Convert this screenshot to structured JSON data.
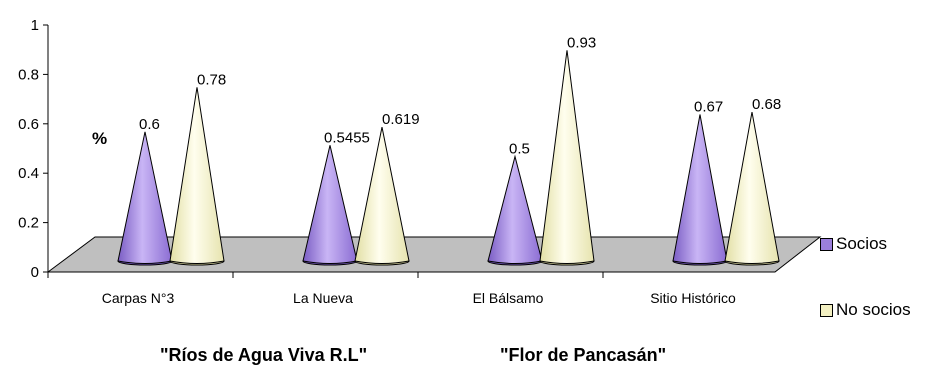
{
  "chart_data": {
    "type": "bar",
    "bar_shape": "cone",
    "three_d": true,
    "categories": [
      "Carpas N°3",
      "La Nueva",
      "El Bálsamo",
      "Sitio Histórico"
    ],
    "series": [
      {
        "name": "Socios",
        "values": [
          0.6,
          0.5455,
          0.5,
          0.67
        ],
        "labels": [
          "0.6",
          "0.5455",
          "0.5",
          "0.67"
        ],
        "color": "#9B7FDC"
      },
      {
        "name": "No socios",
        "values": [
          0.78,
          0.619,
          0.93,
          0.68
        ],
        "labels": [
          "0.78",
          "0.619",
          "0.93",
          "0.68"
        ],
        "color": "#F3F0C2"
      }
    ],
    "ylabel": "%",
    "ylim": [
      0,
      1
    ],
    "yticks": [
      "0",
      "0.2",
      "0.4",
      "0.6",
      "0.8",
      "1"
    ],
    "floor_color": "#BFBFBF",
    "legend_position": "right"
  },
  "group_captions": [
    "\"Ríos de Agua Viva R.L\"",
    "\"Flor de Pancasán\""
  ]
}
